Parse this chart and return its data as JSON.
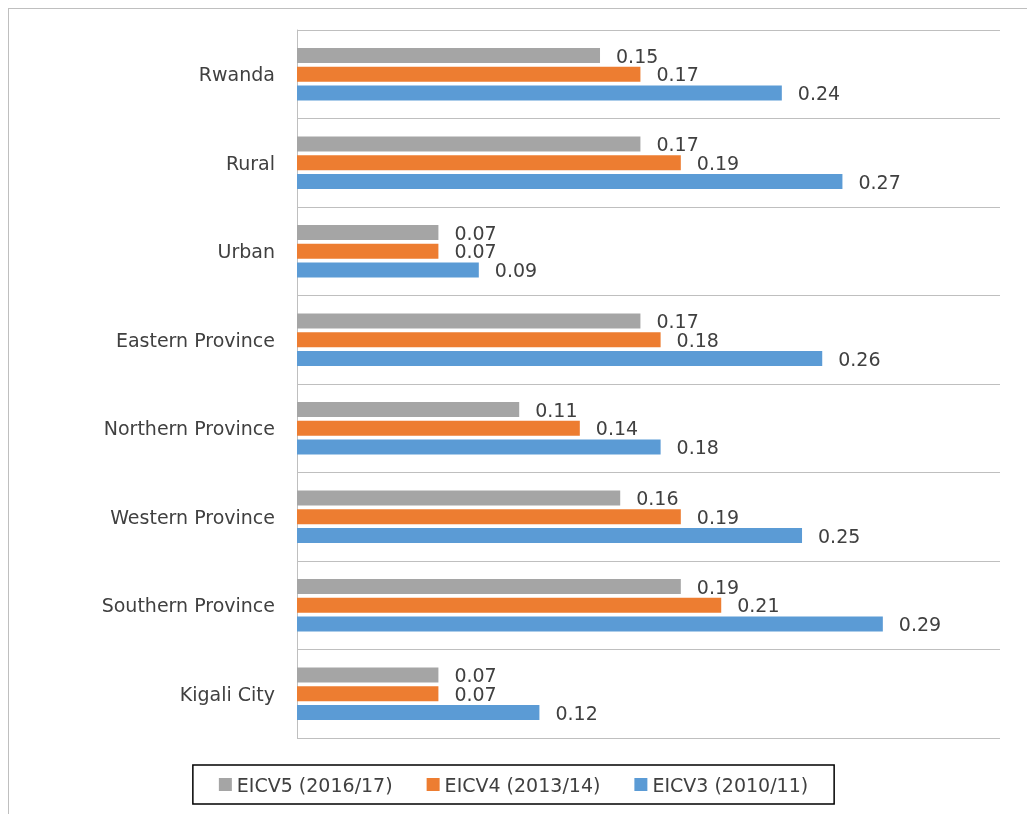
{
  "chart_data": {
    "type": "bar",
    "orientation": "horizontal",
    "categories": [
      "Rwanda",
      "Rural",
      "Urban",
      "Eastern Province",
      "Northern Province",
      "Western Province",
      "Southern Province",
      "Kigali City"
    ],
    "series": [
      {
        "name": "EICV5 (2016/17)",
        "color": "#a5a5a5",
        "values": [
          0.15,
          0.17,
          0.07,
          0.17,
          0.11,
          0.16,
          0.19,
          0.07
        ]
      },
      {
        "name": "EICV4 (2013/14)",
        "color": "#ed7d31",
        "values": [
          0.17,
          0.19,
          0.07,
          0.18,
          0.14,
          0.19,
          0.21,
          0.07
        ]
      },
      {
        "name": "EICV3 (2010/11)",
        "color": "#5b9bd5",
        "values": [
          0.24,
          0.27,
          0.09,
          0.26,
          0.18,
          0.25,
          0.29,
          0.12
        ]
      }
    ],
    "data_labels": true,
    "grid": "y",
    "legend": "bottom"
  }
}
